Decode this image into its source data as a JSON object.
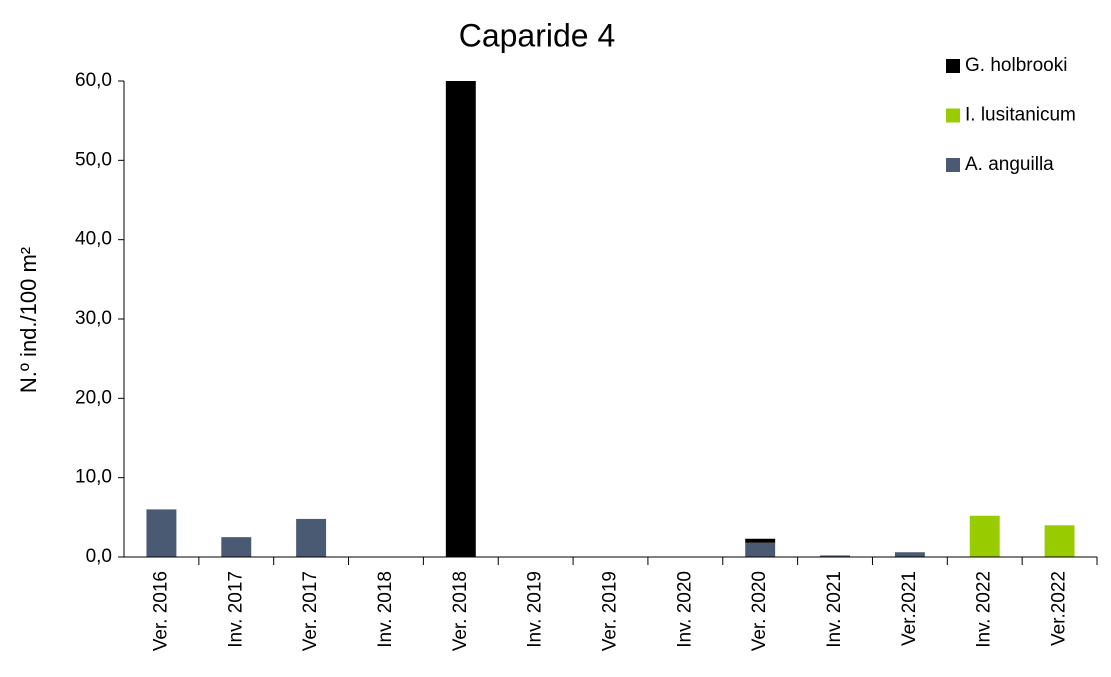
{
  "chart_data": {
    "type": "stacked_bar",
    "title": "Caparide 4",
    "y_label": "N.º ind./100 m²",
    "categories": [
      "Ver. 2016",
      "Inv. 2017",
      "Ver. 2017",
      "Inv. 2018",
      "Ver. 2018",
      "Inv. 2019",
      "Ver. 2019",
      "Inv. 2020",
      "Ver. 2020",
      "Inv. 2021",
      "Ver.2021",
      "Inv. 2022",
      "Ver.2022"
    ],
    "series": [
      {
        "name": "A. anguilla",
        "color": "#4a5a72",
        "values": [
          6.0,
          2.5,
          4.8,
          0,
          0,
          0,
          0,
          0,
          1.8,
          0.2,
          0.6,
          0,
          0
        ]
      },
      {
        "name": "I. lusitanicum",
        "color": "#99cc00",
        "values": [
          0,
          0,
          0,
          0,
          0,
          0,
          0,
          0,
          0,
          0,
          0,
          5.2,
          4.0
        ]
      },
      {
        "name": "G. holbrooki",
        "color": "#000000",
        "values": [
          0,
          0,
          0,
          0,
          60,
          0,
          0,
          0,
          0.5,
          0,
          0,
          0,
          0
        ]
      }
    ],
    "ylim": [
      0,
      60
    ],
    "yticks": [
      {
        "value": 0,
        "label": "0,0"
      },
      {
        "value": 10,
        "label": "10,0"
      },
      {
        "value": 20,
        "label": "20,0"
      },
      {
        "value": 30,
        "label": "30,0"
      },
      {
        "value": 40,
        "label": "40,0"
      },
      {
        "value": 50,
        "label": "50,0"
      },
      {
        "value": 60,
        "label": "60,0"
      }
    ],
    "legend": "top-right"
  }
}
